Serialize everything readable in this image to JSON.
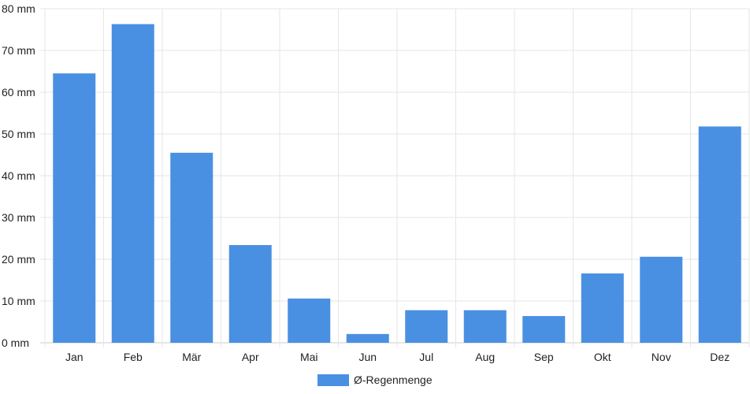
{
  "chart_data": {
    "type": "bar",
    "categories": [
      "Jan",
      "Feb",
      "Mär",
      "Apr",
      "Mai",
      "Jun",
      "Jul",
      "Aug",
      "Sep",
      "Okt",
      "Nov",
      "Dez"
    ],
    "series": [
      {
        "name": "Ø-Regenmenge",
        "values": [
          64.5,
          76.3,
          45.5,
          23.4,
          10.6,
          2.1,
          7.8,
          7.8,
          6.4,
          16.6,
          20.6,
          51.8
        ],
        "color": "#4a90e2"
      }
    ],
    "y_ticks": [
      "0 mm",
      "10 mm",
      "20 mm",
      "30 mm",
      "40 mm",
      "50 mm",
      "60 mm",
      "70 mm",
      "80 mm"
    ],
    "ylim": [
      0,
      80
    ],
    "grid": true,
    "legend_position": "bottom"
  }
}
